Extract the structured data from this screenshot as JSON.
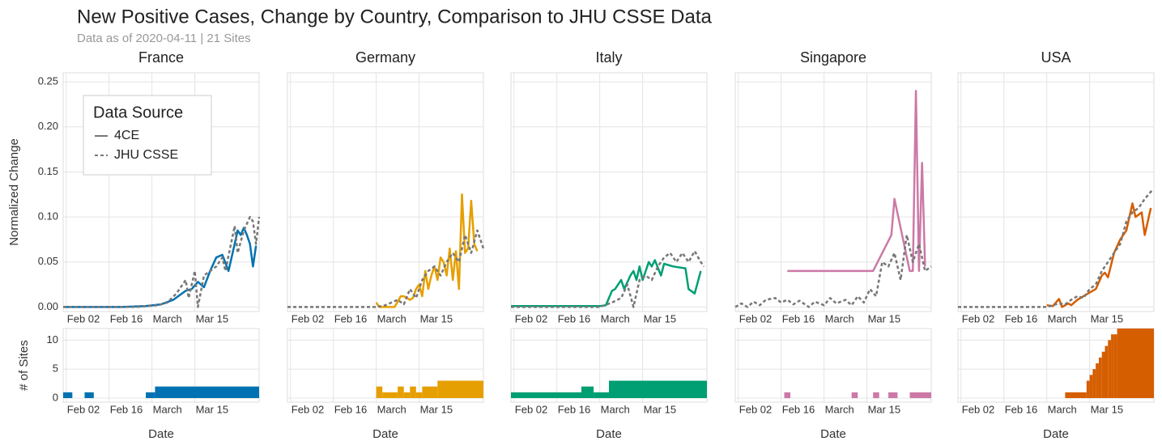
{
  "title": "New Positive Cases, Change by Country, Comparison to JHU CSSE Data",
  "subtitle": "Data as of 2020-04-11 | 21 Sites",
  "chart_data": [
    {
      "type": "line",
      "title": "France",
      "ylabel": "Normalized Change",
      "legend": "top-left",
      "legend_title": "Data Source",
      "xlim": [
        "02-01",
        "04-05"
      ],
      "xticks": [
        {
          "value": "02-02",
          "label": "Feb 02"
        },
        {
          "value": "02-16",
          "label": "Feb 16"
        },
        {
          "value": "03-01",
          "label": "March"
        },
        {
          "value": "03-15",
          "label": "Mar 15"
        }
      ],
      "ylim": [
        -0.005,
        0.26
      ],
      "yticks": [
        {
          "value": 0,
          "label": "0.00"
        },
        {
          "value": 0.05,
          "label": "0.05"
        },
        {
          "value": 0.1,
          "label": "0.10"
        },
        {
          "value": 0.15,
          "label": "0.15"
        },
        {
          "value": 0.2,
          "label": "0.20"
        },
        {
          "value": 0.25,
          "label": "0.25"
        }
      ],
      "grid": true,
      "series": [
        {
          "name": "4CE",
          "color": "#0072b2",
          "style": "solid",
          "x": [
            "02-01",
            "02-10",
            "02-20",
            "02-28",
            "03-04",
            "03-08",
            "03-12",
            "03-14",
            "03-16",
            "03-18",
            "03-20",
            "03-22",
            "03-24",
            "03-26",
            "03-28",
            "03-29",
            "03-30",
            "03-31",
            "04-01",
            "04-02",
            "04-03",
            "04-04"
          ],
          "values": [
            0,
            0,
            0,
            0.001,
            0.003,
            0.008,
            0.018,
            0.02,
            0.028,
            0.022,
            0.04,
            0.055,
            0.058,
            0.04,
            0.07,
            0.085,
            0.08,
            0.088,
            0.08,
            0.07,
            0.045,
            0.068
          ]
        },
        {
          "name": "JHU CSSE",
          "color": "#777777",
          "style": "dashed",
          "x": [
            "02-01",
            "02-25",
            "03-03",
            "03-06",
            "03-09",
            "03-12",
            "03-13",
            "03-15",
            "03-16",
            "03-18",
            "03-20",
            "03-22",
            "03-24",
            "03-25",
            "03-28",
            "03-29",
            "03-31",
            "04-02",
            "04-03",
            "04-04",
            "04-05"
          ],
          "values": [
            0,
            0,
            0.002,
            0.005,
            0.015,
            0.03,
            0.01,
            0.04,
            0,
            0.035,
            0.04,
            0.045,
            0.055,
            0.04,
            0.09,
            0.06,
            0.085,
            0.1,
            0.095,
            0.07,
            0.1
          ]
        }
      ]
    },
    {
      "type": "histogram",
      "ylabel": "# of Sites",
      "xlabel": "Date",
      "color": "#0072b2",
      "xlim": [
        "02-01",
        "04-05"
      ],
      "xticks": [
        {
          "value": "02-02",
          "label": "Feb 02"
        },
        {
          "value": "02-16",
          "label": "Feb 16"
        },
        {
          "value": "03-01",
          "label": "March"
        },
        {
          "value": "03-15",
          "label": "Mar 15"
        }
      ],
      "ylim": [
        -0.7,
        12
      ],
      "yticks": [
        0,
        5,
        10
      ],
      "grid": true,
      "bins": [
        "02-01",
        "02-04",
        "02-08",
        "02-11",
        "02-28",
        "03-02",
        "04-05"
      ],
      "values": [
        1,
        0,
        1,
        0,
        1,
        2
      ]
    },
    {
      "type": "line",
      "title": "Germany",
      "ytick_labels": false,
      "xlim": [
        "02-01",
        "04-05"
      ],
      "xticks": [
        {
          "value": "02-02",
          "label": "Feb 02"
        },
        {
          "value": "02-16",
          "label": "Feb 16"
        },
        {
          "value": "03-01",
          "label": "March"
        },
        {
          "value": "03-15",
          "label": "Mar 15"
        }
      ],
      "ylim": [
        -0.005,
        0.26
      ],
      "yticks": [
        0,
        0.05,
        0.1,
        0.15,
        0.2,
        0.25
      ],
      "grid": true,
      "series": [
        {
          "name": "4CE",
          "color": "#e69f00",
          "style": "solid",
          "x": [
            "03-01",
            "03-02",
            "03-04",
            "03-07",
            "03-09",
            "03-10",
            "03-12",
            "03-13",
            "03-14",
            "03-15",
            "03-16",
            "03-17",
            "03-18",
            "03-19",
            "03-20",
            "03-21",
            "03-22",
            "03-23",
            "03-24",
            "03-25",
            "03-26",
            "03-27",
            "03-28",
            "03-29",
            "03-30",
            "03-31",
            "04-01",
            "04-02",
            "04-03"
          ],
          "values": [
            0.005,
            0,
            0,
            0,
            0.012,
            0.012,
            0.008,
            0.01,
            0.02,
            0.025,
            0.012,
            0.04,
            0.02,
            0.035,
            0.045,
            0.03,
            0.055,
            0.05,
            0.035,
            0.065,
            0.03,
            0.062,
            0.02,
            0.125,
            0.06,
            0.065,
            0.118,
            0.07,
            0.062
          ]
        },
        {
          "name": "JHU CSSE",
          "color": "#777777",
          "style": "dashed",
          "x": [
            "02-01",
            "02-27",
            "03-01",
            "03-04",
            "03-08",
            "03-10",
            "03-12",
            "03-14",
            "03-16",
            "03-18",
            "03-20",
            "03-22",
            "03-24",
            "03-26",
            "03-28",
            "03-30",
            "04-01",
            "04-03",
            "04-05"
          ],
          "values": [
            0,
            0,
            0,
            0.002,
            0.008,
            0.003,
            0.02,
            0.01,
            0.03,
            0.04,
            0.045,
            0.035,
            0.05,
            0.06,
            0.05,
            0.08,
            0.06,
            0.085,
            0.065
          ]
        }
      ]
    },
    {
      "type": "histogram",
      "xlabel": "Date",
      "color": "#e69f00",
      "ytick_labels": false,
      "xlim": [
        "02-01",
        "04-05"
      ],
      "xticks": [
        {
          "value": "02-02",
          "label": "Feb 02"
        },
        {
          "value": "02-16",
          "label": "Feb 16"
        },
        {
          "value": "03-01",
          "label": "March"
        },
        {
          "value": "03-15",
          "label": "Mar 15"
        }
      ],
      "ylim": [
        -0.7,
        12
      ],
      "yticks": [
        0,
        5,
        10
      ],
      "grid": true,
      "bins": [
        "03-01",
        "03-03",
        "03-08",
        "03-10",
        "03-12",
        "03-14",
        "03-16",
        "03-21",
        "04-05"
      ],
      "values": [
        2,
        1,
        2,
        1,
        2,
        1,
        2,
        3
      ]
    },
    {
      "type": "line",
      "title": "Italy",
      "ytick_labels": false,
      "xlim": [
        "02-01",
        "04-05"
      ],
      "xticks": [
        {
          "value": "02-02",
          "label": "Feb 02"
        },
        {
          "value": "02-16",
          "label": "Feb 16"
        },
        {
          "value": "03-01",
          "label": "March"
        },
        {
          "value": "03-15",
          "label": "Mar 15"
        }
      ],
      "ylim": [
        -0.005,
        0.26
      ],
      "yticks": [
        0,
        0.05,
        0.1,
        0.15,
        0.2,
        0.25
      ],
      "grid": true,
      "series": [
        {
          "name": "4CE",
          "color": "#009e73",
          "style": "solid",
          "x": [
            "02-01",
            "03-01",
            "03-03",
            "03-05",
            "03-06",
            "03-08",
            "03-09",
            "03-11",
            "03-12",
            "03-13",
            "03-14",
            "03-15",
            "03-17",
            "03-18",
            "03-19",
            "03-21",
            "03-22",
            "03-25",
            "03-29",
            "03-30",
            "04-01",
            "04-03"
          ],
          "values": [
            0.001,
            0.001,
            0.002,
            0.018,
            0.02,
            0.03,
            0.02,
            0.035,
            0.04,
            0.03,
            0.045,
            0.03,
            0.05,
            0.045,
            0.052,
            0.035,
            0.048,
            0.045,
            0.043,
            0.02,
            0.015,
            0.04
          ]
        },
        {
          "name": "JHU CSSE",
          "color": "#777777",
          "style": "dashed",
          "x": [
            "02-01",
            "03-01",
            "03-05",
            "03-08",
            "03-10",
            "03-12",
            "03-14",
            "03-16",
            "03-18",
            "03-20",
            "03-22",
            "03-24",
            "03-26",
            "03-28",
            "03-30",
            "04-01",
            "04-03",
            "04-04"
          ],
          "values": [
            0,
            0,
            0.005,
            0.01,
            0.025,
            0,
            0.03,
            0.035,
            0.03,
            0.045,
            0.055,
            0.06,
            0.05,
            0.06,
            0.05,
            0.062,
            0.05,
            0.045
          ]
        }
      ]
    },
    {
      "type": "histogram",
      "xlabel": "Date",
      "color": "#009e73",
      "ytick_labels": false,
      "xlim": [
        "02-01",
        "04-05"
      ],
      "xticks": [
        {
          "value": "02-02",
          "label": "Feb 02"
        },
        {
          "value": "02-16",
          "label": "Feb 16"
        },
        {
          "value": "03-01",
          "label": "March"
        },
        {
          "value": "03-15",
          "label": "Mar 15"
        }
      ],
      "ylim": [
        -0.7,
        12
      ],
      "yticks": [
        0,
        5,
        10
      ],
      "grid": true,
      "bins": [
        "02-01",
        "02-24",
        "02-28",
        "03-04",
        "04-05"
      ],
      "values": [
        1,
        2,
        1,
        3
      ]
    },
    {
      "type": "line",
      "title": "Singapore",
      "ytick_labels": false,
      "xlim": [
        "02-01",
        "04-05"
      ],
      "xticks": [
        {
          "value": "02-02",
          "label": "Feb 02"
        },
        {
          "value": "02-16",
          "label": "Feb 16"
        },
        {
          "value": "03-01",
          "label": "March"
        },
        {
          "value": "03-15",
          "label": "Mar 15"
        }
      ],
      "ylim": [
        -0.005,
        0.26
      ],
      "yticks": [
        0,
        0.05,
        0.1,
        0.15,
        0.2,
        0.25
      ],
      "grid": true,
      "series": [
        {
          "name": "4CE",
          "color": "#cc79a7",
          "style": "solid",
          "x": [
            "02-18",
            "03-17",
            "03-23",
            "03-24",
            "03-29",
            "03-30",
            "03-31",
            "04-01",
            "04-02",
            "04-03"
          ],
          "values": [
            0.04,
            0.04,
            0.08,
            0.12,
            0.04,
            0.04,
            0.24,
            0.04,
            0.16,
            0.045
          ]
        },
        {
          "name": "JHU CSSE",
          "color": "#777777",
          "style": "dashed",
          "x": [
            "02-01",
            "02-03",
            "02-05",
            "02-07",
            "02-09",
            "02-11",
            "02-14",
            "02-16",
            "02-18",
            "02-20",
            "02-22",
            "02-25",
            "02-27",
            "03-01",
            "03-03",
            "03-05",
            "03-08",
            "03-10",
            "03-12",
            "03-14",
            "03-16",
            "03-18",
            "03-20",
            "03-22",
            "03-24",
            "03-26",
            "03-28",
            "03-30",
            "04-01",
            "04-03",
            "04-05"
          ],
          "values": [
            0,
            0.004,
            0,
            0.006,
            0.002,
            0.008,
            0.01,
            0.005,
            0.008,
            0.003,
            0.007,
            0,
            0.006,
            0.002,
            0.01,
            0.004,
            0.008,
            0.002,
            0.012,
            0.005,
            0.02,
            0.012,
            0.05,
            0.045,
            0.06,
            0.03,
            0.08,
            0.05,
            0.07,
            0.04,
            0.045
          ]
        }
      ]
    },
    {
      "type": "histogram",
      "xlabel": "Date",
      "color": "#cc79a7",
      "ytick_labels": false,
      "xlim": [
        "02-01",
        "04-05"
      ],
      "xticks": [
        {
          "value": "02-02",
          "label": "Feb 02"
        },
        {
          "value": "02-16",
          "label": "Feb 16"
        },
        {
          "value": "03-01",
          "label": "March"
        },
        {
          "value": "03-15",
          "label": "Mar 15"
        }
      ],
      "ylim": [
        -0.7,
        12
      ],
      "yticks": [
        0,
        5,
        10
      ],
      "grid": true,
      "bins": [
        "02-17",
        "02-19",
        "03-10",
        "03-12",
        "03-17",
        "03-19",
        "03-22",
        "03-25",
        "03-29",
        "04-05"
      ],
      "values": [
        1,
        0,
        1,
        0,
        1,
        0,
        1,
        0,
        1
      ]
    },
    {
      "type": "line",
      "title": "USA",
      "ytick_labels": false,
      "xlim": [
        "02-01",
        "04-05"
      ],
      "xticks": [
        {
          "value": "02-02",
          "label": "Feb 02"
        },
        {
          "value": "02-16",
          "label": "Feb 16"
        },
        {
          "value": "03-01",
          "label": "March"
        },
        {
          "value": "03-15",
          "label": "Mar 15"
        }
      ],
      "ylim": [
        -0.005,
        0.26
      ],
      "yticks": [
        0,
        0.05,
        0.1,
        0.15,
        0.2,
        0.25
      ],
      "grid": true,
      "series": [
        {
          "name": "4CE",
          "color": "#d55e00",
          "style": "solid",
          "x": [
            "03-01",
            "03-03",
            "03-05",
            "03-06",
            "03-08",
            "03-09",
            "03-11",
            "03-13",
            "03-15",
            "03-17",
            "03-19",
            "03-20",
            "03-21",
            "03-23",
            "03-25",
            "03-27",
            "03-29",
            "03-30",
            "04-01",
            "04-02",
            "04-04"
          ],
          "values": [
            0.002,
            0.001,
            0.009,
            0,
            0.004,
            0.002,
            0.008,
            0.012,
            0.016,
            0.02,
            0.035,
            0.038,
            0.033,
            0.06,
            0.075,
            0.085,
            0.115,
            0.1,
            0.105,
            0.08,
            0.11
          ]
        },
        {
          "name": "JHU CSSE",
          "color": "#777777",
          "style": "dashed",
          "x": [
            "02-01",
            "03-01",
            "03-03",
            "03-05",
            "03-07",
            "03-09",
            "03-11",
            "03-13",
            "03-15",
            "03-17",
            "03-19",
            "03-21",
            "03-23",
            "03-25",
            "03-27",
            "03-29",
            "03-31",
            "04-02",
            "04-04",
            "04-05"
          ],
          "values": [
            0,
            0,
            0.002,
            0.004,
            0.003,
            0.008,
            0.012,
            0.01,
            0.02,
            0.025,
            0.04,
            0.05,
            0.06,
            0.07,
            0.095,
            0.105,
            0.11,
            0.12,
            0.128,
            0.13
          ]
        }
      ]
    },
    {
      "type": "histogram",
      "xlabel": "Date",
      "color": "#d55e00",
      "ytick_labels": false,
      "xlim": [
        "02-01",
        "04-05"
      ],
      "xticks": [
        {
          "value": "02-02",
          "label": "Feb 02"
        },
        {
          "value": "02-16",
          "label": "Feb 16"
        },
        {
          "value": "03-01",
          "label": "March"
        },
        {
          "value": "03-15",
          "label": "Mar 15"
        }
      ],
      "ylim": [
        -0.7,
        12
      ],
      "yticks": [
        0,
        5,
        10
      ],
      "grid": true,
      "bins": [
        "03-07",
        "03-14",
        "03-15",
        "03-16",
        "03-17",
        "03-18",
        "03-19",
        "03-20",
        "03-21",
        "03-22",
        "03-23",
        "03-24",
        "04-05"
      ],
      "values": [
        1,
        3,
        4,
        5,
        6,
        7,
        8,
        9,
        10,
        11,
        11,
        12
      ]
    }
  ]
}
